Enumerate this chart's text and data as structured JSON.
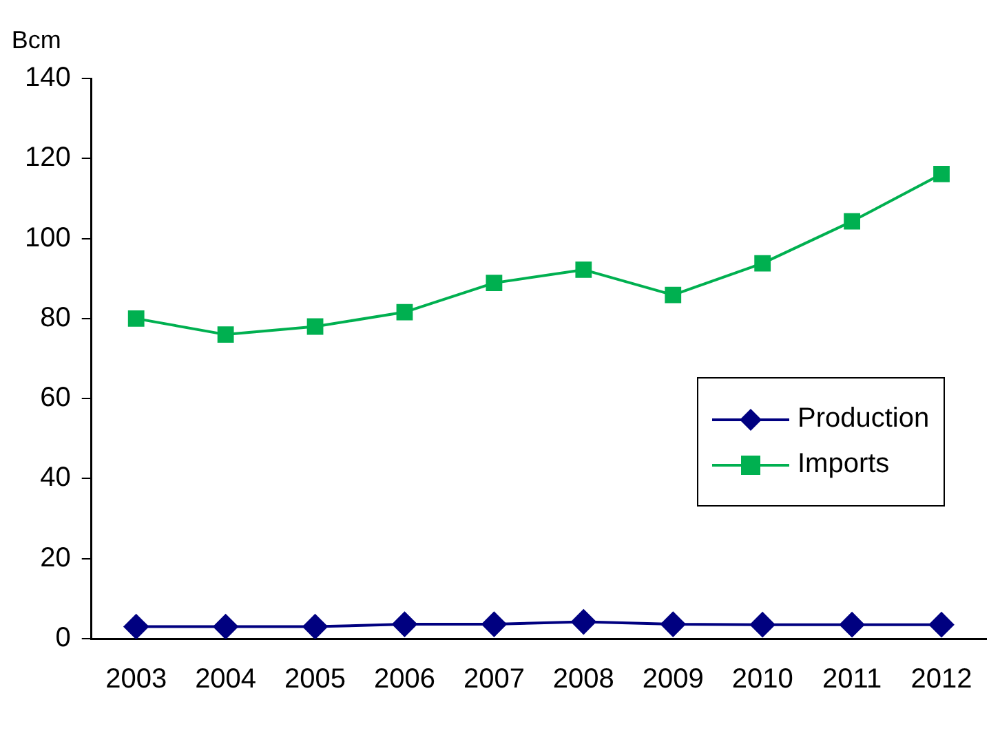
{
  "chart_data": {
    "type": "line",
    "ylabel": "Bcm",
    "categories": [
      "2003",
      "2004",
      "2005",
      "2006",
      "2007",
      "2008",
      "2009",
      "2010",
      "2011",
      "2012"
    ],
    "series": [
      {
        "name": "Production",
        "color": "#000080",
        "marker": "diamond",
        "values": [
          3,
          3,
          3,
          3.6,
          3.6,
          4.2,
          3.6,
          3.5,
          3.5,
          3.5
        ]
      },
      {
        "name": "Imports",
        "color": "#00b050",
        "marker": "square",
        "values": [
          80,
          76,
          78,
          81.6,
          88.9,
          92.2,
          85.9,
          93.8,
          104.3,
          116.1
        ]
      }
    ],
    "ylim": [
      0,
      140
    ],
    "yticks": [
      0,
      20,
      40,
      60,
      80,
      100,
      120,
      140
    ],
    "grid": false,
    "legend": "bottom right",
    "line_style": "solid"
  }
}
